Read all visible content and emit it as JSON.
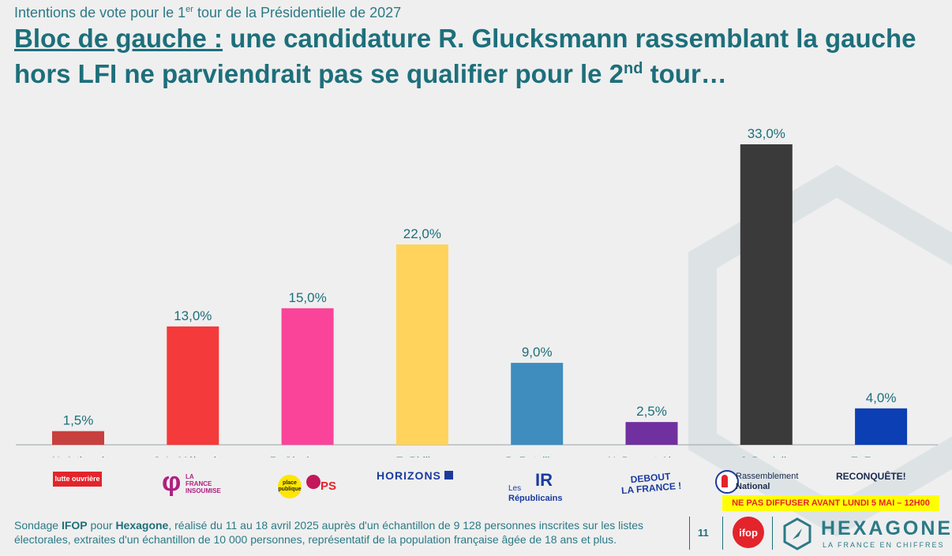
{
  "header": {
    "supertitle_pre": "Intentions de vote pour le 1",
    "supertitle_sup": "er",
    "supertitle_post": " tour de la Présidentielle de 2027",
    "title_lead": "Bloc de gauche :",
    "title_main": " une candidature R. Glucksmann rassemblant la gauche hors LFI ne parviendrait pas se qualifier pour le 2",
    "title_sup": "nd",
    "title_end": " tour…"
  },
  "chart_data": {
    "type": "bar",
    "categories": [
      "N. Arthaud",
      "J.-L. Mélenchon",
      "R. Glucksmann",
      "E. Philippe",
      "B. Retailleau",
      "N. Dupont-Aignan",
      "J. Bardella",
      "E. Zemmour"
    ],
    "values": [
      1.5,
      13.0,
      15.0,
      22.0,
      9.0,
      2.5,
      33.0,
      4.0
    ],
    "value_labels": [
      "1,5%",
      "13,0%",
      "15,0%",
      "22,0%",
      "9,0%",
      "2,5%",
      "33,0%",
      "4,0%"
    ],
    "colors": [
      "#c8403e",
      "#f43a3a",
      "#f9449a",
      "#ffd35c",
      "#3f8cbf",
      "#70309f",
      "#3a3a3a",
      "#0c3eb4"
    ],
    "ylim": [
      0,
      33
    ],
    "grid": false
  },
  "logos": {
    "arthaud": "lutte ouvrière",
    "melenchon_line1": "LA",
    "melenchon_line2": "FRANCE",
    "melenchon_line3": "INSOUMISE",
    "glucksmann_pp": "place publique",
    "glucksmann_ps": "PS",
    "philippe": "HORIZONS",
    "retailleau_les": "Les",
    "retailleau_rep": "Républicains",
    "dupont_line1": "DEBOUT",
    "dupont_line2": "LA FRANCE !",
    "bardella_line1": "Rassemblement",
    "bardella_line2": "National",
    "zemmour": "RECONQUÊTE!"
  },
  "footer": {
    "text_1": "Sondage ",
    "ifop_bold": "IFOP",
    "text_2": " pour ",
    "hexagone_bold": "Hexagone",
    "text_3": ", réalisé du 11 au 18 avril 2025 auprès d'un échantillon de 9 128 personnes inscrites sur les listes électorales, extraites d'un échantillon de 10 000 personnes, représentatif de la population française âgée de 18 ans et plus.",
    "page_number": "11",
    "ifop_logo": "ifop",
    "brand_name": "HEXAGONE",
    "brand_tagline": "LA FRANCE EN CHIFFRES",
    "embargo": "NE PAS DIFFUSER AVANT LUNDI 5 MAI – 12H00"
  }
}
